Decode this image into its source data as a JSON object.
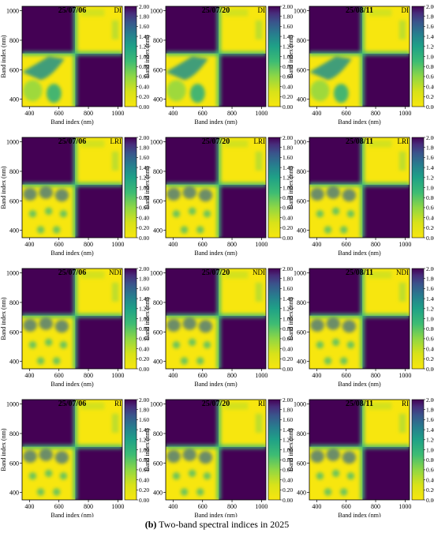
{
  "figure": {
    "caption_label": "(b)",
    "caption_text": "Two-band spectral indices in 2025",
    "colors": {
      "low": "#f7e60f",
      "high": "#440154"
    }
  },
  "chart_data": [
    {
      "type": "heatmap",
      "title": "25/07/06",
      "index": "DI",
      "xlabel": "Band index (nm)",
      "ylabel": "Band index (nm)",
      "xticks": [
        400,
        600,
        800,
        1000
      ],
      "yticks": [
        400,
        600,
        800,
        1000
      ],
      "colorbar": {
        "range": [
          0,
          2
        ],
        "ticks": [
          "0.00",
          "0.20",
          "0.40",
          "0.60",
          "0.80",
          "1.00",
          "1.20",
          "1.40",
          "1.60",
          "1.80",
          "2.00"
        ]
      },
      "pattern": {
        "x_split_nm": 710,
        "y_split_nm": 710,
        "upper_left": "high",
        "lower_right": "high",
        "upper_right": "low",
        "lower_left": "low"
      }
    },
    {
      "type": "heatmap",
      "title": "25/07/20",
      "index": "DI",
      "xlabel": "Band index (nm)",
      "ylabel": "Band index (nm)",
      "xticks": [
        400,
        600,
        800,
        1000
      ],
      "yticks": [
        400,
        600,
        800,
        1000
      ],
      "colorbar": {
        "range": [
          0,
          2
        ],
        "ticks": [
          "0.00",
          "0.20",
          "0.40",
          "0.60",
          "0.80",
          "1.00",
          "1.20",
          "1.40",
          "1.60",
          "1.80",
          "2.00"
        ]
      },
      "pattern": {
        "x_split_nm": 710,
        "y_split_nm": 710,
        "upper_left": "high",
        "lower_right": "high",
        "upper_right": "low",
        "lower_left": "low"
      }
    },
    {
      "type": "heatmap",
      "title": "25/08/11",
      "index": "DI",
      "xlabel": "Band index (nm)",
      "ylabel": "Band index (nm)",
      "xticks": [
        400,
        600,
        800,
        1000
      ],
      "yticks": [
        400,
        600,
        800,
        1000
      ],
      "colorbar": {
        "range": [
          0,
          2
        ],
        "ticks": [
          "0.00",
          "0.20",
          "0.40",
          "0.60",
          "0.80",
          "1.00",
          "1.20",
          "1.40",
          "1.60",
          "1.80",
          "2.00"
        ]
      },
      "pattern": {
        "x_split_nm": 710,
        "y_split_nm": 710,
        "upper_left": "high",
        "lower_right": "high",
        "upper_right": "low",
        "lower_left": "low"
      }
    },
    {
      "type": "heatmap",
      "title": "25/07/06",
      "index": "LRI",
      "xlabel": "Band index (nm)",
      "ylabel": "Band index (nm)",
      "xticks": [
        400,
        600,
        800,
        1000
      ],
      "yticks": [
        400,
        600,
        800,
        1000
      ],
      "colorbar": {
        "range": [
          0,
          2
        ],
        "ticks": [
          "0.00",
          "0.20",
          "0.40",
          "0.60",
          "0.80",
          "1.00",
          "1.20",
          "1.40",
          "1.60",
          "1.80",
          "2.00"
        ]
      },
      "pattern": {
        "x_split_nm": 710,
        "y_split_nm": 710,
        "upper_left": "high",
        "lower_right": "high",
        "upper_right": "low",
        "lower_left": "low"
      }
    },
    {
      "type": "heatmap",
      "title": "25/07/20",
      "index": "LRI",
      "xlabel": "Band index (nm)",
      "ylabel": "Band index (nm)",
      "xticks": [
        400,
        600,
        800,
        1000
      ],
      "yticks": [
        400,
        600,
        800,
        1000
      ],
      "colorbar": {
        "range": [
          0,
          2
        ],
        "ticks": [
          "0.00",
          "0.20",
          "0.40",
          "0.60",
          "0.80",
          "1.00",
          "1.20",
          "1.40",
          "1.60",
          "1.80",
          "2.00"
        ]
      },
      "pattern": {
        "x_split_nm": 710,
        "y_split_nm": 710,
        "upper_left": "high",
        "lower_right": "high",
        "upper_right": "low",
        "lower_left": "low"
      }
    },
    {
      "type": "heatmap",
      "title": "25/08/11",
      "index": "LRI",
      "xlabel": "Band index (nm)",
      "ylabel": "Band index (nm)",
      "xticks": [
        400,
        600,
        800,
        1000
      ],
      "yticks": [
        400,
        600,
        800,
        1000
      ],
      "colorbar": {
        "range": [
          0,
          2
        ],
        "ticks": [
          "0.00",
          "0.20",
          "0.40",
          "0.60",
          "0.80",
          "1.00",
          "1.20",
          "1.40",
          "1.60",
          "1.80",
          "2.00"
        ]
      },
      "pattern": {
        "x_split_nm": 710,
        "y_split_nm": 710,
        "upper_left": "high",
        "lower_right": "high",
        "upper_right": "low",
        "lower_left": "low"
      }
    },
    {
      "type": "heatmap",
      "title": "25/07/06",
      "index": "NDI",
      "xlabel": "Band index (nm)",
      "ylabel": "Band index (nm)",
      "xticks": [
        400,
        600,
        800,
        1000
      ],
      "yticks": [
        400,
        600,
        800,
        1000
      ],
      "colorbar": {
        "range": [
          0,
          2
        ],
        "ticks": [
          "0.00",
          "0.20",
          "0.40",
          "0.60",
          "0.80",
          "1.00",
          "1.20",
          "1.40",
          "1.60",
          "1.80",
          "2.00"
        ]
      },
      "pattern": {
        "x_split_nm": 710,
        "y_split_nm": 710,
        "upper_left": "high",
        "lower_right": "high",
        "upper_right": "low",
        "lower_left": "low"
      }
    },
    {
      "type": "heatmap",
      "title": "25/07/20",
      "index": "NDI",
      "xlabel": "Band index (nm)",
      "ylabel": "Band index (nm)",
      "xticks": [
        400,
        600,
        800,
        1000
      ],
      "yticks": [
        400,
        600,
        800,
        1000
      ],
      "colorbar": {
        "range": [
          0,
          2
        ],
        "ticks": [
          "0.00",
          "0.20",
          "0.40",
          "0.60",
          "0.80",
          "1.00",
          "1.20",
          "1.40",
          "1.60",
          "1.80",
          "2.00"
        ]
      },
      "pattern": {
        "x_split_nm": 710,
        "y_split_nm": 710,
        "upper_left": "high",
        "lower_right": "high",
        "upper_right": "low",
        "lower_left": "low"
      }
    },
    {
      "type": "heatmap",
      "title": "25/08/11",
      "index": "NDI",
      "xlabel": "Band index (nm)",
      "ylabel": "Band index (nm)",
      "xticks": [
        400,
        600,
        800,
        1000
      ],
      "yticks": [
        400,
        600,
        800,
        1000
      ],
      "colorbar": {
        "range": [
          0,
          2
        ],
        "ticks": [
          "0.00",
          "0.20",
          "0.40",
          "0.60",
          "0.80",
          "1.00",
          "1.20",
          "1.40",
          "1.60",
          "1.80",
          "2.00"
        ]
      },
      "pattern": {
        "x_split_nm": 710,
        "y_split_nm": 710,
        "upper_left": "high",
        "lower_right": "high",
        "upper_right": "low",
        "lower_left": "low"
      }
    },
    {
      "type": "heatmap",
      "title": "25/07/06",
      "index": "RI",
      "xlabel": "Band index (nm)",
      "ylabel": "Band index (nm)",
      "xticks": [
        400,
        600,
        800,
        1000
      ],
      "yticks": [
        400,
        600,
        800,
        1000
      ],
      "colorbar": {
        "range": [
          0,
          2
        ],
        "ticks": [
          "0.00",
          "0.20",
          "0.40",
          "0.60",
          "0.80",
          "1.00",
          "1.20",
          "1.40",
          "1.60",
          "1.80",
          "2.00"
        ]
      },
      "pattern": {
        "x_split_nm": 710,
        "y_split_nm": 710,
        "upper_left": "high",
        "lower_right": "high",
        "upper_right": "low",
        "lower_left": "low"
      }
    },
    {
      "type": "heatmap",
      "title": "25/07/20",
      "index": "RI",
      "xlabel": "Band index (nm)",
      "ylabel": "Band index (nm)",
      "xticks": [
        400,
        600,
        800,
        1000
      ],
      "yticks": [
        400,
        600,
        800,
        1000
      ],
      "colorbar": {
        "range": [
          0,
          2
        ],
        "ticks": [
          "0.00",
          "0.20",
          "0.40",
          "0.60",
          "0.80",
          "1.00",
          "1.20",
          "1.40",
          "1.60",
          "1.80",
          "2.00"
        ]
      },
      "pattern": {
        "x_split_nm": 710,
        "y_split_nm": 710,
        "upper_left": "high",
        "lower_right": "high",
        "upper_right": "low",
        "lower_left": "low"
      }
    },
    {
      "type": "heatmap",
      "title": "25/08/11",
      "index": "RI",
      "xlabel": "Band index (nm)",
      "ylabel": "Band index (nm)",
      "xticks": [
        400,
        600,
        800,
        1000
      ],
      "yticks": [
        400,
        600,
        800,
        1000
      ],
      "colorbar": {
        "range": [
          0,
          2
        ],
        "ticks": [
          "0.00",
          "0.20",
          "0.40",
          "0.60",
          "0.80",
          "1.00",
          "1.20",
          "1.40",
          "1.60",
          "1.80",
          "2.00"
        ]
      },
      "pattern": {
        "x_split_nm": 710,
        "y_split_nm": 710,
        "upper_left": "high",
        "lower_right": "high",
        "upper_right": "low",
        "lower_left": "low"
      }
    }
  ]
}
